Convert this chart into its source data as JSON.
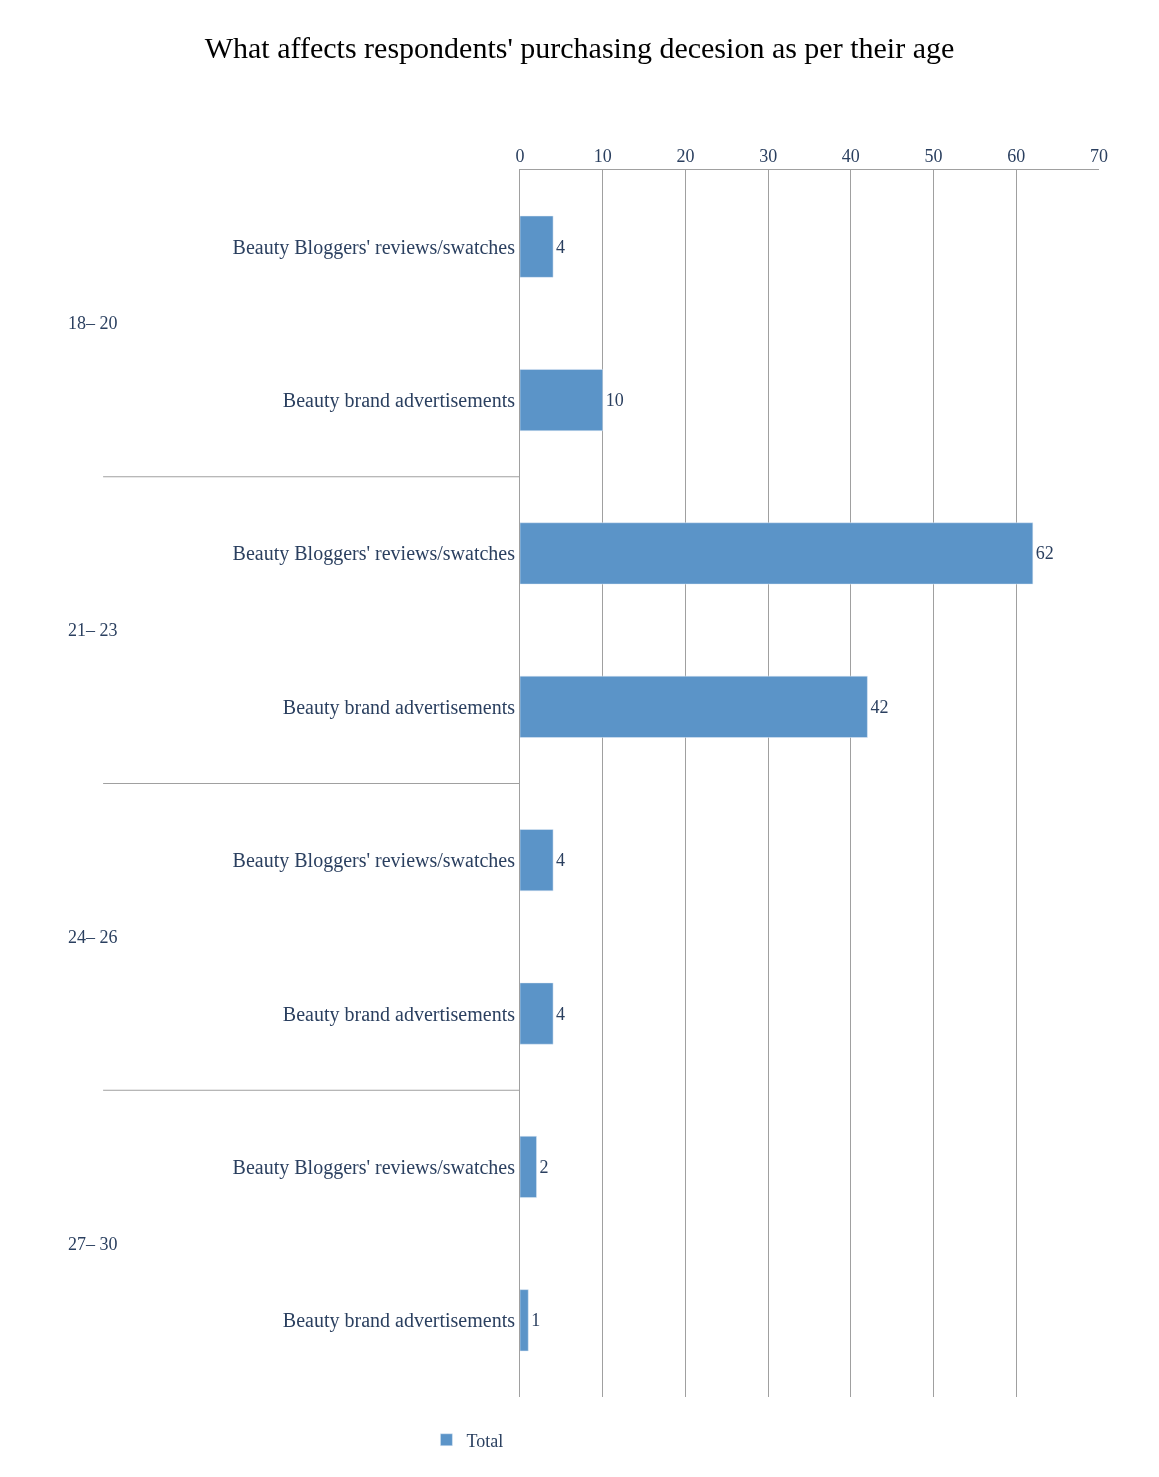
{
  "chart_data": {
    "type": "bar",
    "orientation": "horizontal",
    "title": "What affects respondents' purchasing decesion as per their age",
    "categories": [
      "Beauty Bloggers' reviews/swatches",
      "Beauty brand advertisements",
      "Beauty Bloggers' reviews/swatches",
      "Beauty brand advertisements",
      "Beauty Bloggers' reviews/swatches",
      "Beauty brand advertisements",
      "Beauty Bloggers' reviews/swatches",
      "Beauty brand advertisements"
    ],
    "series": [
      {
        "name": "Total",
        "color": "#5b94c8",
        "values": [
          4,
          10,
          62,
          42,
          4,
          4,
          2,
          1
        ]
      }
    ],
    "annotations": [
      "18– 20",
      "21– 23",
      "24– 26",
      "27– 30"
    ],
    "xlim": [
      0,
      70
    ],
    "xticks": [
      0,
      10,
      20,
      30,
      40,
      50,
      60,
      70
    ],
    "grid": "x",
    "legend": "bottom left",
    "data_labels": true
  }
}
